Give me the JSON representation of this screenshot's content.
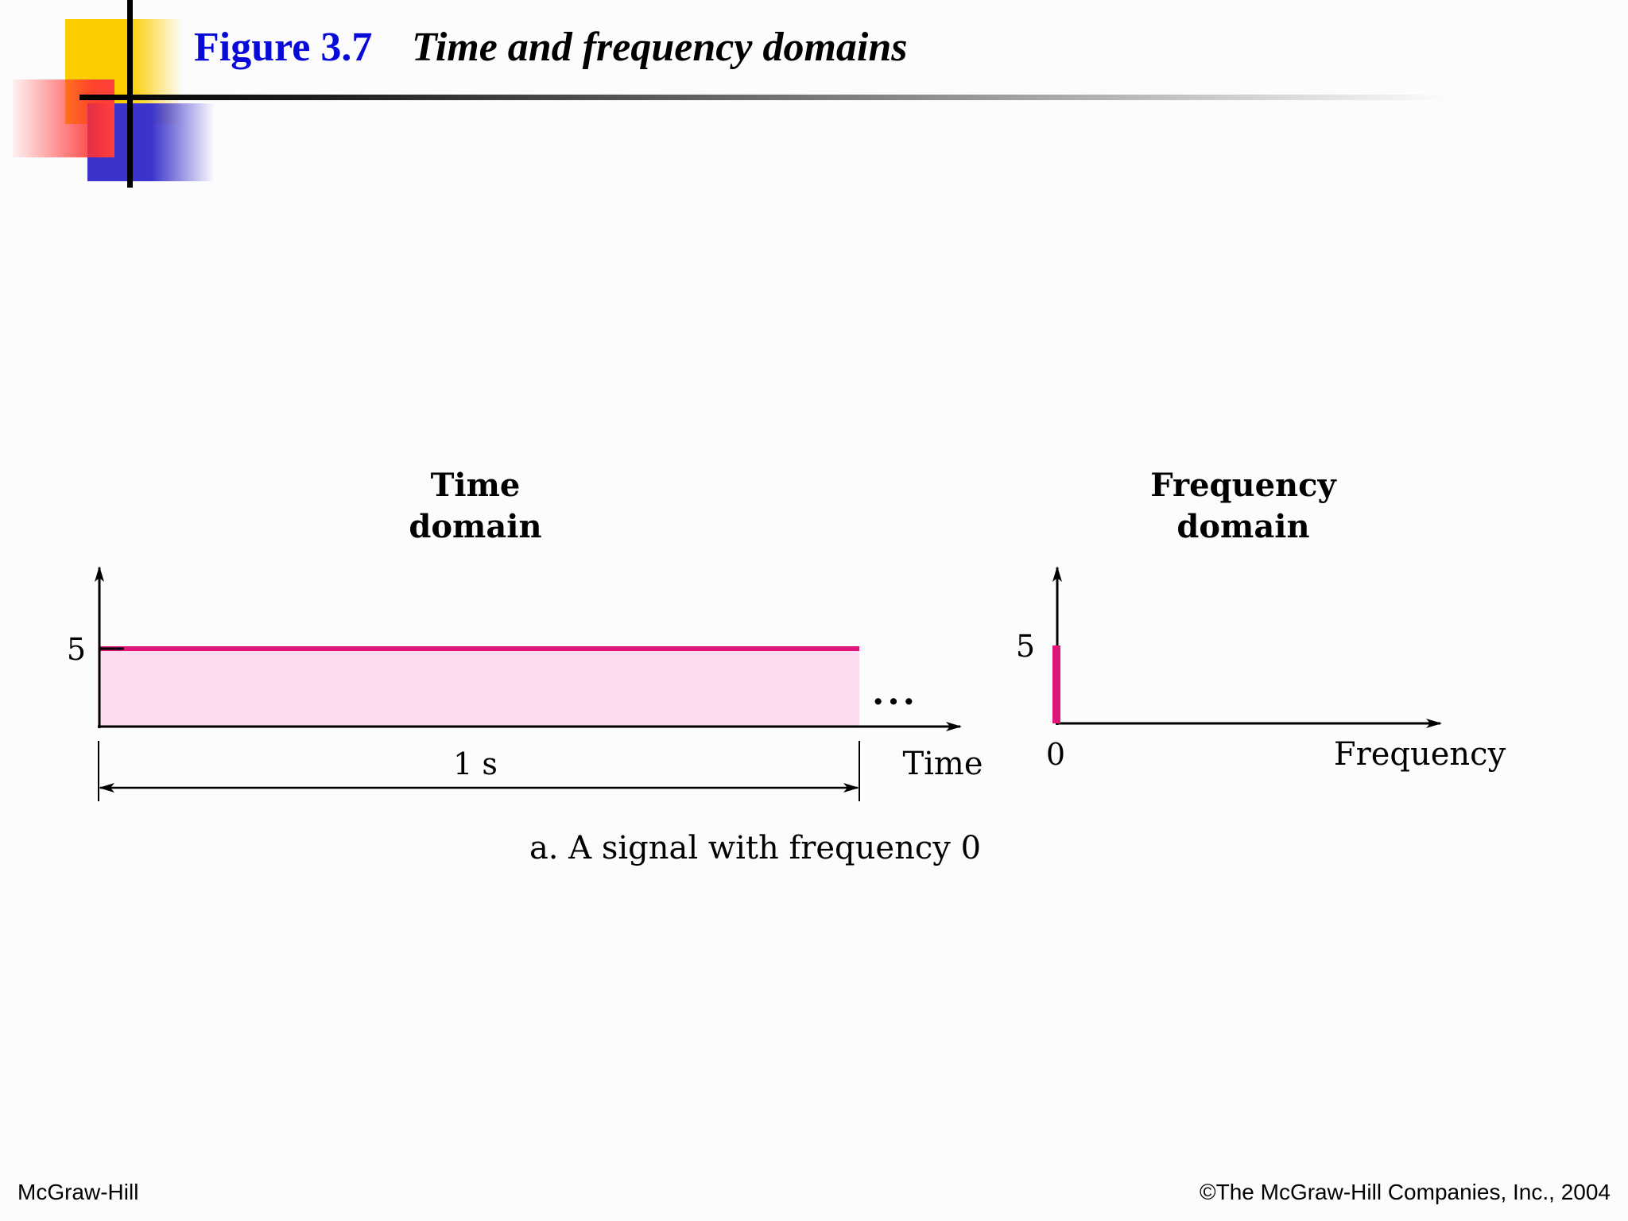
{
  "slide": {
    "figure_number": "Figure 3.7",
    "figure_title": "Time and frequency domains",
    "footer_left": "McGraw-Hill",
    "footer_right": "©The McGraw-Hill Companies, Inc., 2004"
  },
  "diagram": {
    "caption": "a. A signal with frequency 0",
    "time_domain": {
      "title_line1": "Time",
      "title_line2": "domain",
      "y_tick": "5",
      "duration_label": "1 s",
      "x_label": "Time",
      "continuation": "..."
    },
    "frequency_domain": {
      "title_line1": "Frequency",
      "title_line2": "domain",
      "y_tick": "5",
      "x_tick": "0",
      "x_label": "Frequency"
    },
    "colors": {
      "signal": "#e0157a",
      "fill": "#fcdcef",
      "axis": "#000000"
    }
  }
}
